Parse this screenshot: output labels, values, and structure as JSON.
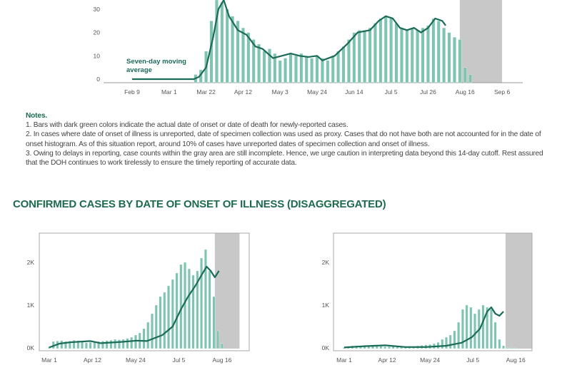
{
  "notes": {
    "title": "Notes.",
    "items": [
      "1. Bars with dark green  colors indicate the actual date of onset or date of death for newly-reported cases.",
      "2. In cases where date of onset of illness is unreported, date of specimen collection was used as proxy. Cases that do not have both are not accounted for in the date of onset histogram. As of this situation report, around 10% of cases have unreported dates of specimen collection and onset of illness.",
      "3. Owing to delays in reporting, case counts within the gray area are still incomplete. Hence, we urge caution in interpreting data beyond this 14-day cutoff. Rest assured that the DOH continues to work tirelessly to ensure the timely reporting of accurate data."
    ]
  },
  "section_title": "CONFIRMED CASES BY DATE OF ONSET OF ILLNESS (DISAGGREGATED)",
  "colors": {
    "bar": "#7fc4b0",
    "line": "#1a6b57",
    "gray": "#c8c8c8",
    "title": "#1d6b4e"
  },
  "chart_data": [
    {
      "type": "bar",
      "title": "",
      "annotation": "Seven-day moving average",
      "annotation_lines": [
        "Seven-day moving",
        "average"
      ],
      "x_ticks": [
        "Feb 9",
        "Mar 1",
        "Mar 22",
        "Apr 12",
        "May 3",
        "May 24",
        "Jun 14",
        "Jul 5",
        "Jul 26",
        "Aug 16",
        "Sep 6"
      ],
      "x_tick_days": [
        0,
        21,
        42,
        63,
        84,
        105,
        126,
        147,
        168,
        189,
        210
      ],
      "y_ticks": [
        "0",
        "10",
        "20",
        "30"
      ],
      "y_tick_values": [
        0,
        10,
        20,
        30
      ],
      "ylim": [
        0,
        33
      ],
      "gray_area_days": [
        186,
        210
      ],
      "bar_start_day": 36,
      "bar_step_days": 3,
      "values": [
        2,
        4,
        12,
        25,
        35,
        33,
        30,
        27,
        25,
        22,
        20,
        17,
        15,
        12,
        13,
        11,
        8,
        9,
        11,
        10,
        11,
        10,
        9,
        10,
        9,
        8,
        10,
        12,
        14,
        17,
        20,
        21,
        21,
        22,
        24,
        26,
        27,
        26,
        24,
        22,
        21,
        22,
        21,
        22,
        23,
        26,
        25,
        22,
        20,
        18,
        17,
        5,
        2
      ],
      "moving_average": [
        [
          0,
          0
        ],
        [
          35,
          0
        ],
        [
          38,
          1
        ],
        [
          42,
          5
        ],
        [
          46,
          18
        ],
        [
          49,
          30
        ],
        [
          52,
          34
        ],
        [
          55,
          27
        ],
        [
          60,
          21
        ],
        [
          65,
          19
        ],
        [
          70,
          14
        ],
        [
          74,
          13
        ],
        [
          80,
          9
        ],
        [
          85,
          10
        ],
        [
          90,
          11
        ],
        [
          95,
          10
        ],
        [
          100,
          9.5
        ],
        [
          105,
          10
        ],
        [
          108,
          8
        ],
        [
          115,
          10
        ],
        [
          122,
          15
        ],
        [
          128,
          20
        ],
        [
          135,
          21
        ],
        [
          140,
          25
        ],
        [
          144,
          27
        ],
        [
          148,
          26
        ],
        [
          152,
          22
        ],
        [
          156,
          21
        ],
        [
          160,
          22
        ],
        [
          164,
          20
        ],
        [
          168,
          22
        ],
        [
          172,
          26
        ],
        [
          176,
          25
        ],
        [
          178,
          23
        ]
      ]
    },
    {
      "type": "bar",
      "x_ticks": [
        "Mar 1",
        "Apr 12",
        "May 24",
        "Jul 5",
        "Aug 16"
      ],
      "x_tick_days": [
        0,
        42,
        84,
        126,
        168
      ],
      "y_ticks": [
        "0K",
        "1K",
        "2K"
      ],
      "y_tick_values": [
        0,
        1000,
        2000
      ],
      "gray_area_days": [
        161,
        185
      ],
      "bar_start_day": 0,
      "bar_step_days": 4,
      "values": [
        30,
        150,
        160,
        170,
        150,
        160,
        180,
        170,
        140,
        120,
        130,
        140,
        150,
        160,
        170,
        180,
        200,
        190,
        200,
        220,
        250,
        300,
        350,
        450,
        600,
        800,
        1000,
        1200,
        1300,
        1450,
        1600,
        1750,
        1950,
        2000,
        1850,
        1700,
        1800,
        2100,
        2300,
        1800,
        1200,
        400,
        100
      ],
      "moving_average": [
        [
          0,
          10
        ],
        [
          10,
          100
        ],
        [
          20,
          130
        ],
        [
          40,
          160
        ],
        [
          50,
          110
        ],
        [
          70,
          140
        ],
        [
          85,
          170
        ],
        [
          95,
          160
        ],
        [
          110,
          300
        ],
        [
          120,
          500
        ],
        [
          128,
          900
        ],
        [
          135,
          1200
        ],
        [
          142,
          1450
        ],
        [
          148,
          1700
        ],
        [
          153,
          1900
        ],
        [
          157,
          1800
        ],
        [
          161,
          1650
        ],
        [
          165,
          1800
        ]
      ]
    },
    {
      "type": "bar",
      "x_ticks": [
        "Mar 1",
        "Apr 12",
        "May 24",
        "Jul 5",
        "Aug 16"
      ],
      "x_tick_days": [
        0,
        42,
        84,
        126,
        168
      ],
      "y_ticks": [
        "0K",
        "1K",
        "2K"
      ],
      "y_tick_values": [
        0,
        1000,
        2000
      ],
      "gray_area_days": [
        158,
        184
      ],
      "bar_start_day": 0,
      "bar_step_days": 4,
      "values": [
        10,
        40,
        50,
        50,
        50,
        50,
        60,
        70,
        60,
        40,
        30,
        30,
        30,
        30,
        30,
        30,
        40,
        40,
        50,
        60,
        70,
        80,
        100,
        130,
        200,
        250,
        300,
        400,
        600,
        900,
        1000,
        950,
        800,
        900,
        1000,
        950,
        900,
        600,
        200,
        50,
        0,
        0,
        0
      ],
      "moving_average": [
        [
          0,
          10
        ],
        [
          20,
          40
        ],
        [
          40,
          60
        ],
        [
          60,
          20
        ],
        [
          80,
          20
        ],
        [
          100,
          50
        ],
        [
          115,
          120
        ],
        [
          125,
          250
        ],
        [
          133,
          450
        ],
        [
          140,
          850
        ],
        [
          144,
          950
        ],
        [
          148,
          800
        ],
        [
          152,
          750
        ],
        [
          156,
          850
        ]
      ]
    }
  ]
}
